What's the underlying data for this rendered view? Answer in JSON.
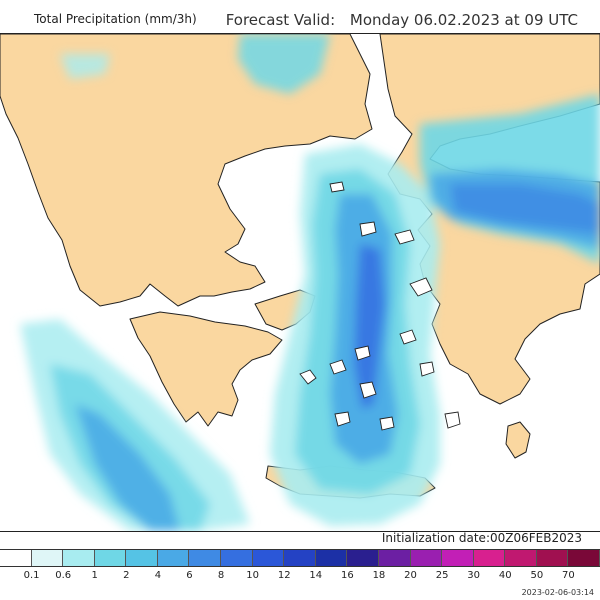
{
  "header": {
    "product_title": "Total Precipitation (mm/3h)",
    "valid_label": "Forecast Valid:",
    "valid_time": "Monday 06.02.2023 at 09 UTC"
  },
  "footer": {
    "initialization": "Initialization date:00Z06FEB2023",
    "render_stamp": "2023-02-06-03:14"
  },
  "legend": {
    "labels": [
      "0.1",
      "0.6",
      "1",
      "2",
      "4",
      "6",
      "8",
      "10",
      "12",
      "14",
      "16",
      "18",
      "20",
      "25",
      "30",
      "40",
      "50",
      "70"
    ],
    "colors": [
      "#ffffff",
      "#dff6f7",
      "#a8ecf0",
      "#6fd7e6",
      "#55c3e5",
      "#4aa9e6",
      "#3f8ae4",
      "#356fe0",
      "#2b57d8",
      "#2442c4",
      "#1c30a6",
      "#2a1f8f",
      "#6c1fa3",
      "#9a1fb0",
      "#c21fb6",
      "#d8208f",
      "#c01870",
      "#a01050",
      "#7a0838"
    ]
  },
  "colors": {
    "land": "#fad7a0",
    "sea": "#ffffff",
    "coastline": "#222222"
  }
}
